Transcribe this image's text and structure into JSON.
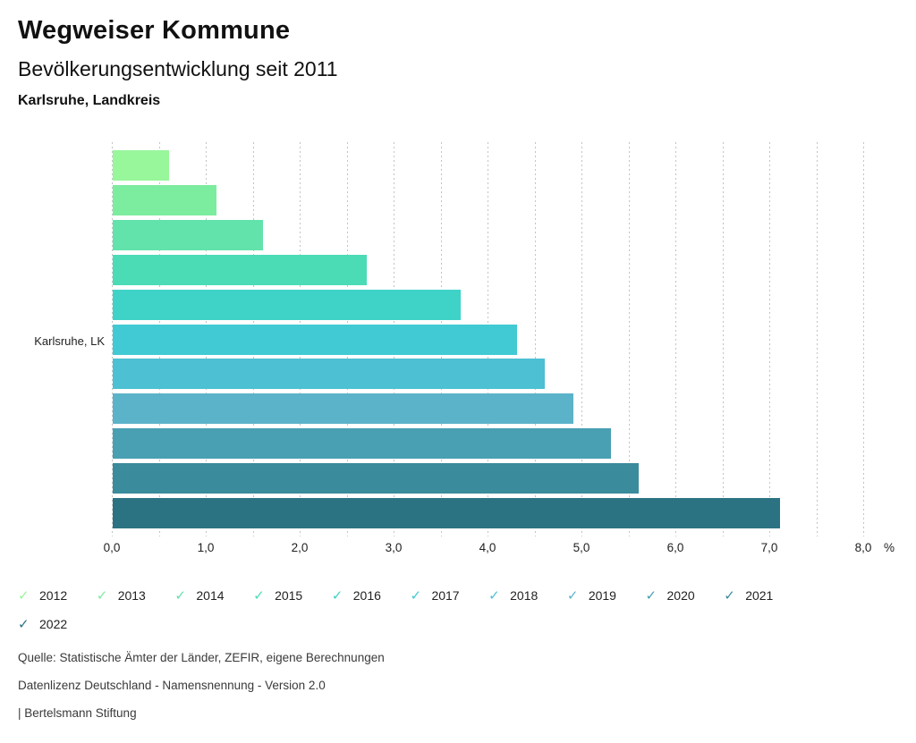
{
  "header": {
    "title": "Wegweiser Kommune",
    "subtitle": "Bevölkerungsentwicklung seit 2011",
    "region": "Karlsruhe, Landkreis"
  },
  "chart_data": {
    "type": "bar",
    "orientation": "horizontal",
    "title": "Bevölkerungsentwicklung seit 2011",
    "categories": [
      "Karlsruhe, LK"
    ],
    "series": [
      {
        "name": "2012",
        "values": [
          0.6
        ],
        "color": "#98f69b"
      },
      {
        "name": "2013",
        "values": [
          1.1
        ],
        "color": "#7cec9f"
      },
      {
        "name": "2014",
        "values": [
          1.6
        ],
        "color": "#61e3ab"
      },
      {
        "name": "2015",
        "values": [
          2.7
        ],
        "color": "#4bdcb6"
      },
      {
        "name": "2016",
        "values": [
          3.7
        ],
        "color": "#3fd3c8"
      },
      {
        "name": "2017",
        "values": [
          4.3
        ],
        "color": "#41cad3"
      },
      {
        "name": "2018",
        "values": [
          4.6
        ],
        "color": "#4dc0d3"
      },
      {
        "name": "2019",
        "values": [
          4.9
        ],
        "color": "#5bb3c9"
      },
      {
        "name": "2020",
        "values": [
          5.3
        ],
        "color": "#49a0b2"
      },
      {
        "name": "2021",
        "values": [
          5.6
        ],
        "color": "#3a8b9b"
      },
      {
        "name": "2022",
        "values": [
          7.1
        ],
        "color": "#2b7383"
      }
    ],
    "xlim": [
      0,
      8
    ],
    "grid": true,
    "gridline_step": 0.5,
    "xtick_step": 1.0,
    "xtick_labels": [
      "0,0",
      "1,0",
      "2,0",
      "3,0",
      "4,0",
      "5,0",
      "6,0",
      "7,0",
      "8,0"
    ],
    "x_unit": "%",
    "legend_position": "bottom",
    "value_display_format": "decimal-comma"
  },
  "legend": {
    "check_glyph": "✓"
  },
  "footer": {
    "source": "Quelle: Statistische Ämter der Länder, ZEFIR, eigene Berechnungen",
    "license": "Datenlizenz Deutschland - Namensnennung - Version 2.0",
    "attribution": "| Bertelsmann Stiftung"
  }
}
